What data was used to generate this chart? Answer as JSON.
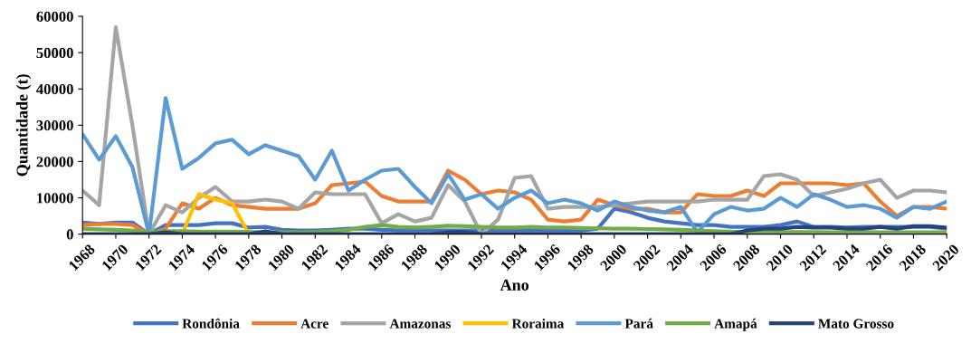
{
  "chart_data": {
    "type": "line",
    "xlabel": "Ano",
    "ylabel": "Quantidade (t)",
    "legend": "bottom",
    "grid": false,
    "line_style": "solid",
    "marker": "none",
    "x": [
      1968,
      1969,
      1970,
      1971,
      1972,
      1973,
      1974,
      1975,
      1976,
      1977,
      1978,
      1979,
      1980,
      1981,
      1982,
      1983,
      1984,
      1985,
      1986,
      1987,
      1988,
      1989,
      1990,
      1991,
      1992,
      1993,
      1994,
      1995,
      1996,
      1997,
      1998,
      1999,
      2000,
      2001,
      2002,
      2003,
      2004,
      2005,
      2006,
      2007,
      2008,
      2009,
      2010,
      2011,
      2012,
      2013,
      2014,
      2015,
      2016,
      2017,
      2018,
      2019,
      2020
    ],
    "xlim": [
      1968,
      2020
    ],
    "xticks": [
      1968,
      1970,
      1972,
      1974,
      1976,
      1978,
      1980,
      1982,
      1984,
      1986,
      1988,
      1990,
      1992,
      1994,
      1996,
      1998,
      2000,
      2002,
      2004,
      2006,
      2008,
      2010,
      2012,
      2014,
      2016,
      2018,
      2020
    ],
    "ylim": [
      0,
      60000
    ],
    "yticks": [
      0,
      10000,
      20000,
      30000,
      40000,
      50000,
      60000
    ],
    "series": [
      {
        "name": "Rondônia",
        "color": "#4472c4",
        "values": [
          3200,
          2800,
          3200,
          3200,
          0,
          2500,
          2500,
          2500,
          3000,
          3000,
          1800,
          2000,
          1200,
          1000,
          1000,
          1200,
          1500,
          1500,
          1200,
          1000,
          1000,
          1000,
          1000,
          1000,
          1000,
          1000,
          1000,
          1000,
          1000,
          1000,
          1000,
          1500,
          7000,
          6000,
          4500,
          3500,
          3000,
          2500,
          2500,
          2000,
          2000,
          2000,
          2500,
          3500,
          2000,
          2000,
          1800,
          2000,
          2000,
          2000,
          2000,
          2000,
          1500
        ]
      },
      {
        "name": "Acre",
        "color": "#ed7d31",
        "values": [
          2500,
          2800,
          2800,
          2500,
          0,
          1500,
          8500,
          7000,
          10000,
          8000,
          7500,
          7000,
          7000,
          7000,
          8500,
          13500,
          14000,
          14500,
          10500,
          9000,
          9000,
          9000,
          17500,
          15000,
          11000,
          12000,
          11500,
          9500,
          4000,
          3500,
          4000,
          9500,
          8000,
          7000,
          7000,
          6000,
          6000,
          11000,
          10500,
          10500,
          12000,
          10500,
          14000,
          14000,
          14000,
          14000,
          13500,
          14000,
          9000,
          5000,
          7500,
          7500,
          7000
        ]
      },
      {
        "name": "Amazonas",
        "color": "#a5a5a5",
        "values": [
          12000,
          8000,
          57000,
          30000,
          0,
          8000,
          6000,
          10000,
          13000,
          9000,
          9000,
          9500,
          9000,
          7000,
          11500,
          11000,
          11000,
          11000,
          3000,
          5500,
          3500,
          4500,
          13500,
          9000,
          0,
          4000,
          15500,
          16000,
          7000,
          7500,
          7500,
          7500,
          8000,
          8500,
          9000,
          9000,
          9000,
          9000,
          9500,
          9500,
          9500,
          16000,
          16500,
          15000,
          10500,
          11500,
          12500,
          14000,
          15000,
          10000,
          12000,
          12000,
          11500
        ]
      },
      {
        "name": "Roraima",
        "color": "#ffc000",
        "values": [
          null,
          null,
          null,
          null,
          null,
          null,
          0,
          11000,
          9500,
          8500,
          0,
          null,
          null,
          null,
          null,
          null,
          null,
          null,
          null,
          null,
          null,
          null,
          null,
          null,
          null,
          null,
          null,
          null,
          null,
          null,
          null,
          null,
          null,
          null,
          null,
          null,
          null,
          null,
          null,
          null,
          null,
          null,
          null,
          null,
          null,
          null,
          null,
          null,
          null,
          null,
          null,
          null,
          null
        ]
      },
      {
        "name": "Pará",
        "color": "#5b9bd5",
        "values": [
          27500,
          20500,
          27000,
          18500,
          0,
          37500,
          18000,
          21000,
          25000,
          26000,
          22000,
          24500,
          23000,
          21500,
          15000,
          23000,
          12000,
          15000,
          17500,
          18000,
          13000,
          8500,
          16500,
          9500,
          11000,
          7000,
          10000,
          12000,
          8500,
          9500,
          8500,
          6500,
          9000,
          7500,
          6500,
          6000,
          7500,
          500,
          5500,
          7500,
          6500,
          7000,
          10000,
          7500,
          11000,
          9500,
          7500,
          8000,
          7000,
          4500,
          7500,
          7000,
          9000
        ]
      },
      {
        "name": "Amapá",
        "color": "#70ad47",
        "values": [
          1500,
          1300,
          1200,
          1000,
          500,
          800,
          800,
          700,
          700,
          700,
          600,
          500,
          500,
          500,
          600,
          800,
          1200,
          2000,
          2500,
          2000,
          1800,
          2000,
          2300,
          2200,
          2000,
          1800,
          1800,
          2000,
          1800,
          1800,
          1700,
          1600,
          1500,
          1500,
          1400,
          1300,
          1200,
          1000,
          800,
          700,
          600,
          600,
          600,
          600,
          600,
          500,
          500,
          500,
          500,
          500,
          500,
          500,
          500
        ]
      },
      {
        "name": "Mato Grosso",
        "color": "#264478",
        "values": [
          0,
          0,
          0,
          0,
          0,
          500,
          0,
          0,
          0,
          0,
          0,
          800,
          0,
          0,
          0,
          0,
          0,
          0,
          0,
          0,
          0,
          0,
          500,
          600,
          0,
          0,
          0,
          0,
          0,
          0,
          0,
          0,
          0,
          0,
          0,
          0,
          0,
          0,
          0,
          0,
          1000,
          1500,
          1500,
          2000,
          1800,
          1800,
          1500,
          1500,
          2000,
          1500,
          2200,
          2200,
          1800
        ]
      }
    ]
  }
}
